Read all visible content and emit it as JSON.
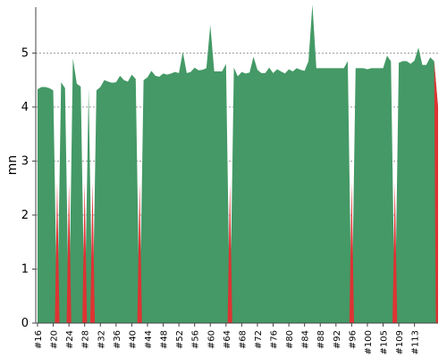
{
  "chart_data": {
    "type": "area",
    "title": "",
    "xlabel": "",
    "ylabel": "mn",
    "ylim": [
      0,
      5.85
    ],
    "grid": true,
    "legend": "none",
    "y_ticks": [
      0,
      1,
      2,
      3,
      4,
      5
    ],
    "x_tick_labels": [
      "#16",
      "#20",
      "#24",
      "#28",
      "#32",
      "#36",
      "#40",
      "#44",
      "#48",
      "#52",
      "#56",
      "#60",
      "#64",
      "#68",
      "#72",
      "#76",
      "#80",
      "#84",
      "#88",
      "#92",
      "#96",
      "#100",
      "#105",
      "#109",
      "#113"
    ],
    "x_tick_indices": [
      0,
      4,
      8,
      12,
      16,
      20,
      24,
      28,
      32,
      36,
      40,
      44,
      48,
      52,
      56,
      60,
      64,
      68,
      72,
      76,
      80,
      84,
      88,
      92,
      96
    ],
    "colors": {
      "area": "#449966",
      "zero_segment": "#dd3333",
      "grid": "#666666"
    },
    "series": [
      {
        "values": [
          4.33,
          4.37,
          4.37,
          4.35,
          4.31,
          0,
          4.46,
          4.35,
          0,
          4.9,
          4.43,
          4.38,
          0,
          4.35,
          0,
          4.31,
          4.37,
          4.5,
          4.47,
          4.45,
          4.46,
          4.58,
          4.5,
          4.47,
          4.6,
          4.52,
          0,
          4.5,
          4.55,
          4.67,
          4.58,
          4.56,
          4.62,
          4.6,
          4.62,
          4.65,
          4.63,
          5.02,
          4.63,
          4.65,
          4.73,
          4.68,
          4.69,
          4.72,
          5.52,
          4.66,
          4.66,
          4.66,
          4.8,
          0,
          4.73,
          4.57,
          4.65,
          4.62,
          4.64,
          4.93,
          4.69,
          4.63,
          4.63,
          4.73,
          4.63,
          4.7,
          4.66,
          4.62,
          4.7,
          4.66,
          4.72,
          4.69,
          4.67,
          4.85,
          5.9,
          4.72,
          4.72,
          4.72,
          4.72,
          4.72,
          4.72,
          4.72,
          4.72,
          4.85,
          0,
          4.72,
          4.72,
          4.72,
          4.7,
          4.72,
          4.72,
          4.72,
          4.72,
          4.95,
          4.85,
          0,
          4.82,
          4.85,
          4.85,
          4.8,
          4.86,
          5.1,
          4.78,
          4.78,
          4.92,
          4.85,
          4.0
        ]
      }
    ]
  }
}
